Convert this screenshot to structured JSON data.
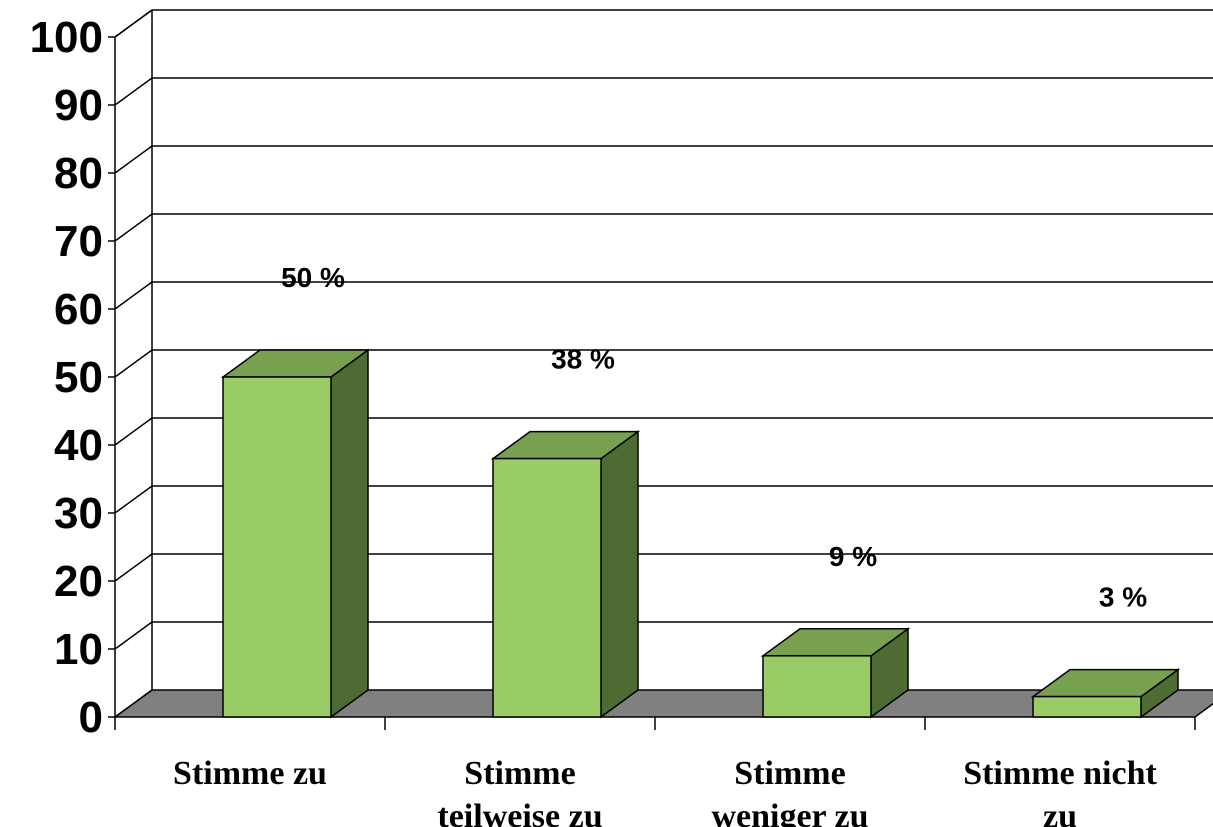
{
  "chart_data": {
    "type": "bar",
    "categories": [
      [
        "Stimme zu"
      ],
      [
        "Stimme",
        "teilweise zu"
      ],
      [
        "Stimme",
        "weniger zu"
      ],
      [
        "Stimme nicht",
        "zu"
      ]
    ],
    "values": [
      50,
      38,
      9,
      3
    ],
    "data_labels": [
      "50 %",
      "38 %",
      "9 %",
      "3 %"
    ],
    "y_ticks": [
      "0",
      "10",
      "20",
      "30",
      "40",
      "50",
      "60",
      "70",
      "80",
      "90",
      "100"
    ],
    "ylim": [
      0,
      100
    ],
    "grid": true,
    "style": "3d-column",
    "colors": {
      "bar_front": "#99cc66",
      "bar_top": "#77a04f",
      "bar_side": "#4e6b34",
      "floor": "#808080",
      "grid": "#000000"
    }
  }
}
